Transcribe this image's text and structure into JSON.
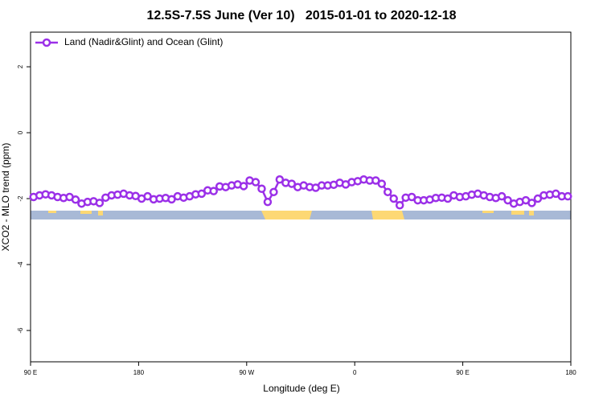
{
  "chart_data": {
    "type": "line",
    "title": "12.5S-7.5S June (Ver 10)   2015-01-01 to 2020-12-18",
    "xlabel": "Longitude (deg E)",
    "ylabel": "XCO2 - MLO trend (ppm)",
    "xlim": [
      90,
      540
    ],
    "ylim": [
      -6.95,
      3.05
    ],
    "xticks": [
      {
        "value": 90,
        "label": "90 E"
      },
      180,
      {
        "value": 270,
        "label": "90 W"
      },
      {
        "value": 360,
        "label": "0"
      },
      {
        "value": 450,
        "label": "90 E"
      },
      {
        "value": 540,
        "label": "180"
      }
    ],
    "yticks": [
      -6,
      -4,
      -2,
      0,
      2
    ],
    "legend": "upper left",
    "x": [
      92.5,
      97.5,
      102.5,
      107.5,
      112.5,
      117.5,
      122.5,
      127.5,
      132.5,
      137.5,
      142.5,
      147.5,
      152.5,
      157.5,
      162.5,
      167.5,
      172.5,
      177.5,
      182.5,
      187.5,
      192.5,
      197.5,
      202.5,
      207.5,
      212.5,
      217.5,
      222.5,
      227.5,
      232.5,
      237.5,
      242.5,
      247.5,
      252.5,
      257.5,
      262.5,
      267.5,
      272.5,
      277.5,
      282.5,
      287.5,
      292.5,
      297.5,
      302.5,
      307.5,
      312.5,
      317.5,
      322.5,
      327.5,
      332.5,
      337.5,
      342.5,
      347.5,
      352.5,
      357.5,
      362.5,
      367.5,
      372.5,
      377.5,
      382.5,
      387.5,
      392.5,
      397.5,
      402.5,
      407.5,
      412.5,
      417.5,
      422.5,
      427.5,
      432.5,
      437.5,
      442.5,
      447.5,
      452.5,
      457.5,
      462.5,
      467.5,
      472.5,
      477.5,
      482.5,
      487.5,
      492.5,
      497.5,
      502.5,
      507.5,
      512.5,
      517.5,
      522.5,
      527.5,
      532.5,
      537.5
    ],
    "series": [
      {
        "name": "Land (Nadir&Glint) and Ocean (Glint)",
        "color": "#9b30e8",
        "values": [
          -1.95,
          -1.9,
          -1.87,
          -1.9,
          -1.95,
          -1.98,
          -1.95,
          -2.03,
          -2.15,
          -2.1,
          -2.08,
          -2.13,
          -1.97,
          -1.9,
          -1.88,
          -1.85,
          -1.9,
          -1.92,
          -2.0,
          -1.93,
          -2.02,
          -2.0,
          -1.98,
          -2.02,
          -1.93,
          -1.97,
          -1.93,
          -1.87,
          -1.85,
          -1.75,
          -1.77,
          -1.63,
          -1.65,
          -1.6,
          -1.57,
          -1.62,
          -1.45,
          -1.5,
          -1.7,
          -2.1,
          -1.8,
          -1.42,
          -1.52,
          -1.55,
          -1.65,
          -1.6,
          -1.65,
          -1.67,
          -1.6,
          -1.6,
          -1.58,
          -1.52,
          -1.57,
          -1.5,
          -1.47,
          -1.42,
          -1.45,
          -1.45,
          -1.55,
          -1.8,
          -2.0,
          -2.2,
          -1.97,
          -1.95,
          -2.05,
          -2.05,
          -2.03,
          -1.98,
          -1.97,
          -2.0,
          -1.9,
          -1.95,
          -1.93,
          -1.88,
          -1.85,
          -1.9,
          -1.95,
          -1.98,
          -1.93,
          -2.05,
          -2.15,
          -2.1,
          -2.05,
          -2.13,
          -2.0,
          -1.9,
          -1.88,
          -1.85,
          -1.93,
          -1.93
        ]
      }
    ]
  }
}
